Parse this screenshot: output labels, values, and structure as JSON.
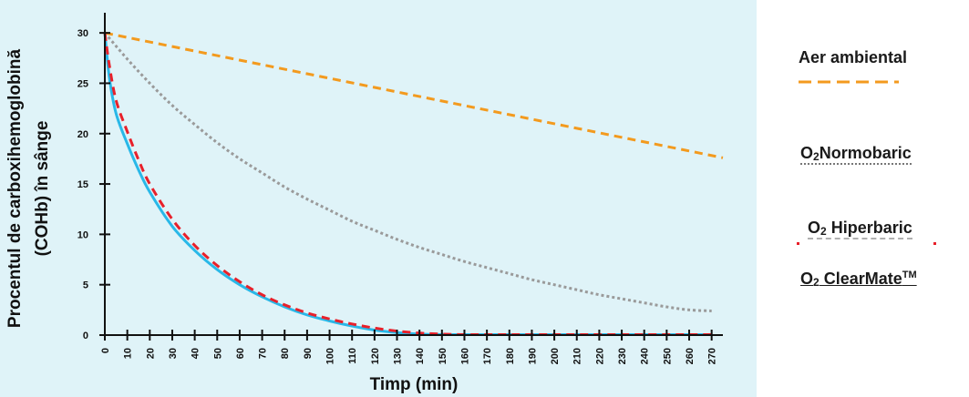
{
  "chart_data": {
    "type": "line",
    "xlabel": "Timp (min)",
    "ylabel_line1": "Procentul de carboxihemoglobină",
    "ylabel_line2": "(COHb) în sânge",
    "xlim": [
      0,
      275
    ],
    "ylim": [
      0,
      32
    ],
    "x_ticks": [
      0,
      10,
      20,
      30,
      40,
      50,
      60,
      70,
      80,
      90,
      100,
      110,
      120,
      130,
      140,
      150,
      160,
      170,
      180,
      190,
      200,
      210,
      220,
      230,
      240,
      250,
      260,
      270
    ],
    "y_ticks": [
      0,
      5,
      10,
      15,
      20,
      25,
      30
    ],
    "grid": false,
    "legend_position": "right",
    "series": [
      {
        "name": "Aer ambiental",
        "color": "#f39a1e",
        "style": "dashed",
        "x": [
          0,
          275
        ],
        "y": [
          30,
          17.6
        ]
      },
      {
        "name": "O2 Normobaric",
        "color": "#9a9a9a",
        "style": "dotted",
        "x": [
          0,
          10,
          20,
          30,
          40,
          50,
          60,
          70,
          80,
          90,
          100,
          110,
          120,
          130,
          140,
          150,
          160,
          170,
          180,
          190,
          200,
          210,
          220,
          230,
          240,
          250,
          260,
          270
        ],
        "y": [
          30,
          27.4,
          25.0,
          22.8,
          20.9,
          19.1,
          17.5,
          16.1,
          14.7,
          13.5,
          12.4,
          11.3,
          10.4,
          9.5,
          8.7,
          8.0,
          7.3,
          6.7,
          6.1,
          5.5,
          5.0,
          4.5,
          4.0,
          3.6,
          3.2,
          2.8,
          2.5,
          2.4
        ]
      },
      {
        "name": "O2 Hiperbaric",
        "color": "#e8202a",
        "style": "dashed",
        "x": [
          0,
          2,
          5,
          10,
          15,
          20,
          30,
          40,
          50,
          60,
          70,
          80,
          90,
          100,
          110,
          120,
          130,
          140,
          150,
          160,
          180,
          200,
          220,
          240,
          260,
          270
        ],
        "y": [
          30,
          26.8,
          23.3,
          20.2,
          17.4,
          15.0,
          11.5,
          8.9,
          6.9,
          5.3,
          4.0,
          3.0,
          2.2,
          1.6,
          1.1,
          0.7,
          0.4,
          0.2,
          0.1,
          0.05,
          0.05,
          0.05,
          0.05,
          0.05,
          0.05,
          0.05
        ]
      },
      {
        "name": "O2 ClearMate™",
        "color": "#29b8e8",
        "style": "solid",
        "x": [
          0,
          2,
          5,
          10,
          15,
          20,
          30,
          40,
          50,
          60,
          70,
          80,
          90,
          100,
          110,
          120,
          130,
          140,
          150,
          160,
          180,
          200,
          220,
          240,
          260,
          270
        ],
        "y": [
          30,
          25.6,
          22.0,
          19.0,
          16.4,
          14.2,
          10.8,
          8.4,
          6.5,
          5.0,
          3.8,
          2.8,
          2.0,
          1.4,
          0.9,
          0.5,
          0.25,
          0.1,
          0.05,
          0.05,
          0.05,
          0.05,
          0.05,
          0.05,
          0.05,
          0.05
        ]
      }
    ]
  },
  "legend": {
    "aer": "Aer ambiental",
    "normobaric_prefix": "O",
    "normobaric_sub": "2",
    "normobaric_text": "Normobaric",
    "hiperbaric_prefix": "O",
    "hiperbaric_sub": "2",
    "hiperbaric_text": " Hiperbaric",
    "clearmate_prefix": "O",
    "clearmate_sub": "2",
    "clearmate_text": " ClearMate",
    "clearmate_tm": "TM"
  }
}
